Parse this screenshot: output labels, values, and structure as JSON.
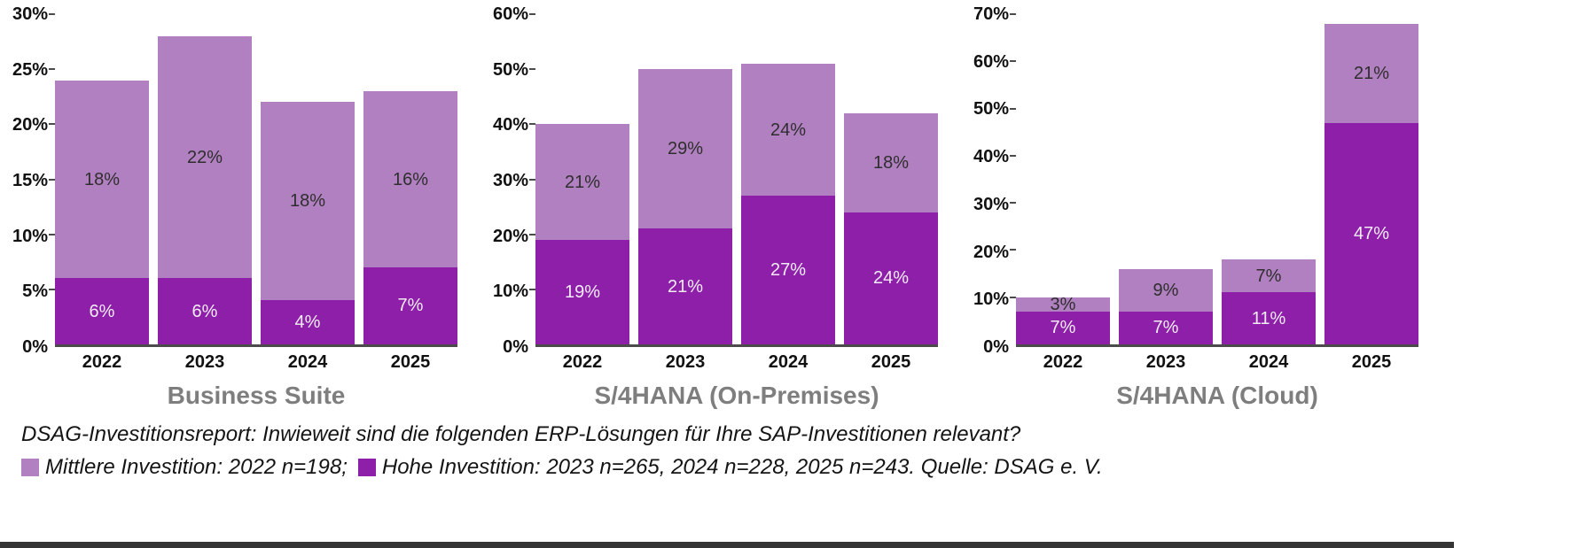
{
  "colors": {
    "mittlere": "#b180c0",
    "hohe": "#8d1fa8",
    "label_on_light": "#2e2e2e",
    "label_on_dark": "#f3ecf7",
    "axis_text": "#111111",
    "title_text": "#7e7e7e",
    "baseline": "#4b4b4b"
  },
  "caption": {
    "line1": "DSAG-Investitionsreport: Inwieweit sind die folgenden ERP-Lösungen für Ihre SAP-Investitionen relevant?",
    "legend": [
      {
        "swatch": "mittlere",
        "text": "Mittlere Investition: 2022 n=198;"
      },
      {
        "swatch": "hohe",
        "text": "Hohe Investition: 2023 n=265, 2024 n=228, 2025 n=243. Quelle: DSAG e. V."
      }
    ]
  },
  "chart_data": [
    {
      "type": "bar",
      "stacked": true,
      "title": "Business Suite",
      "categories": [
        "2022",
        "2023",
        "2024",
        "2025"
      ],
      "series": [
        {
          "name": "Hohe Investition",
          "color_key": "hohe",
          "values": [
            6,
            6,
            4,
            7
          ]
        },
        {
          "name": "Mittlere Investition",
          "color_key": "mittlere",
          "values": [
            18,
            22,
            18,
            16
          ]
        }
      ],
      "totals": [
        24,
        28,
        22,
        23
      ],
      "ylim": [
        0,
        30
      ],
      "ytick_step": 5,
      "grid": false,
      "xlabel": "",
      "ylabel": ""
    },
    {
      "type": "bar",
      "stacked": true,
      "title": "S/4HANA (On-Premises)",
      "categories": [
        "2022",
        "2023",
        "2024",
        "2025"
      ],
      "series": [
        {
          "name": "Hohe Investition",
          "color_key": "hohe",
          "values": [
            19,
            21,
            27,
            24
          ]
        },
        {
          "name": "Mittlere Investition",
          "color_key": "mittlere",
          "values": [
            21,
            29,
            24,
            18
          ]
        }
      ],
      "totals": [
        40,
        50,
        51,
        42
      ],
      "ylim": [
        0,
        60
      ],
      "ytick_step": 10,
      "grid": false,
      "xlabel": "",
      "ylabel": ""
    },
    {
      "type": "bar",
      "stacked": true,
      "title": "S/4HANA (Cloud)",
      "categories": [
        "2022",
        "2023",
        "2024",
        "2025"
      ],
      "series": [
        {
          "name": "Hohe Investition",
          "color_key": "hohe",
          "values": [
            7,
            7,
            11,
            47
          ]
        },
        {
          "name": "Mittlere Investition",
          "color_key": "mittlere",
          "values": [
            3,
            9,
            7,
            21
          ]
        }
      ],
      "totals": [
        10,
        16,
        18,
        68
      ],
      "ylim": [
        0,
        70
      ],
      "ytick_step": 10,
      "grid": false,
      "xlabel": "",
      "ylabel": ""
    }
  ]
}
